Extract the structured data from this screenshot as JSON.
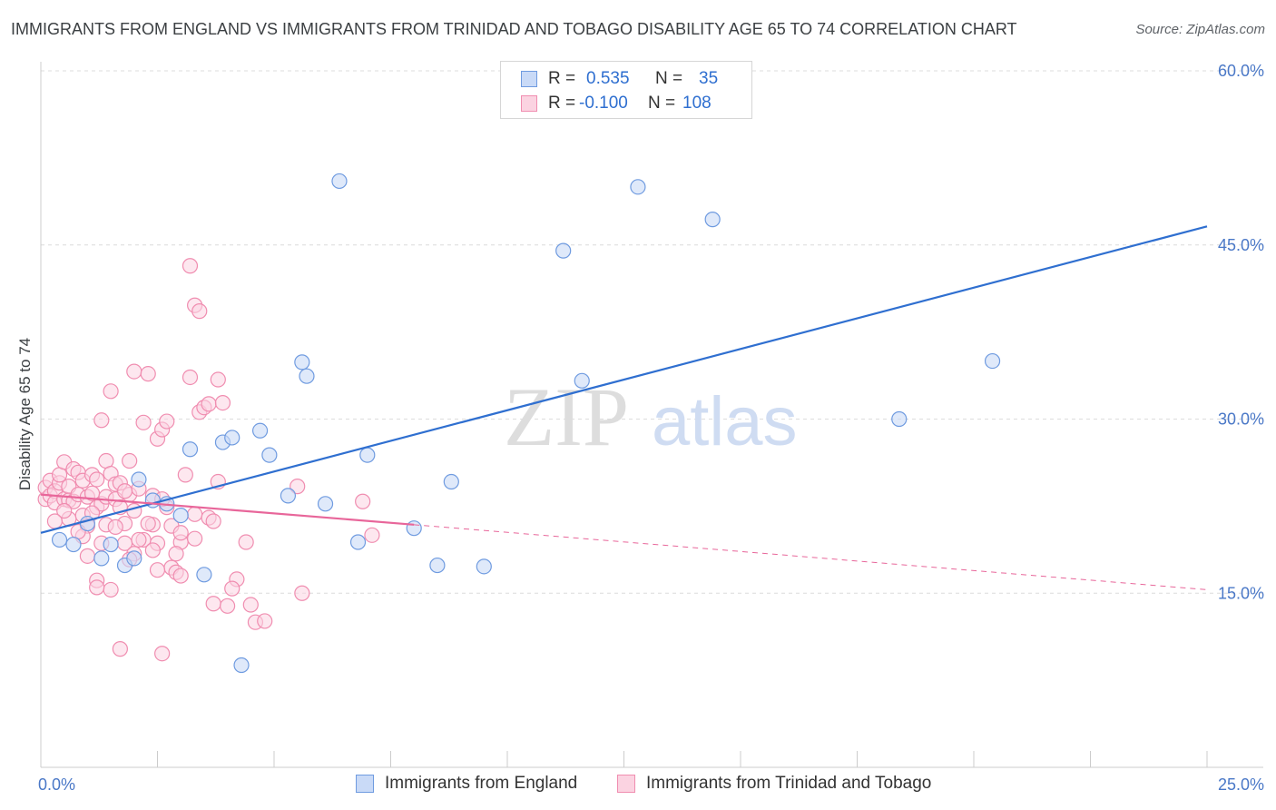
{
  "header": {
    "title": "IMMIGRANTS FROM ENGLAND VS IMMIGRANTS FROM TRINIDAD AND TOBAGO DISABILITY AGE 65 TO 74 CORRELATION CHART",
    "source": "Source: ZipAtlas.com"
  },
  "watermark": {
    "zip": "ZIP",
    "atlas": "atlas"
  },
  "legend": {
    "rows": [
      {
        "r_label": "R =",
        "r_value": "0.535",
        "n_label": "N =",
        "n_value": "35",
        "color": "#6f9be0",
        "fill": "#c9daf7"
      },
      {
        "r_label": "R =",
        "r_value": "-0.100",
        "n_label": "N =",
        "n_value": "108",
        "color": "#f08db0",
        "fill": "#fbd3e1"
      }
    ]
  },
  "bottom_legend": {
    "england": "Immigrants from England",
    "trinidad": "Immigrants from Trinidad and Tobago"
  },
  "chart_data": {
    "type": "scatter",
    "ylabel": "Disability Age 65 to 74",
    "xlim": [
      0,
      25
    ],
    "ylim": [
      0,
      60
    ],
    "x_tick_labels": [
      "0.0%",
      "25.0%"
    ],
    "y_tick_labels": [
      "15.0%",
      "30.0%",
      "45.0%",
      "60.0%"
    ],
    "y_ticks": [
      15,
      30,
      45,
      60
    ],
    "grid": true,
    "colors": {
      "england": "#2f6fd0",
      "trinidad": "#e8669a",
      "england_fill": "#c9daf7",
      "trinidad_fill": "#fbd3e1"
    },
    "series": [
      {
        "name": "Immigrants from England",
        "points": [
          [
            0.4,
            19.6
          ],
          [
            0.7,
            19.2
          ],
          [
            1.0,
            21.0
          ],
          [
            1.3,
            18.0
          ],
          [
            1.5,
            19.2
          ],
          [
            1.8,
            17.4
          ],
          [
            2.1,
            24.8
          ],
          [
            2.4,
            23.0
          ],
          [
            2.7,
            22.7
          ],
          [
            3.0,
            21.7
          ],
          [
            3.2,
            27.4
          ],
          [
            3.5,
            16.6
          ],
          [
            3.9,
            28.0
          ],
          [
            4.1,
            28.4
          ],
          [
            4.3,
            8.8
          ],
          [
            4.7,
            29.0
          ],
          [
            4.9,
            26.9
          ],
          [
            5.3,
            23.4
          ],
          [
            5.6,
            34.9
          ],
          [
            5.7,
            33.7
          ],
          [
            6.1,
            22.7
          ],
          [
            6.4,
            50.5
          ],
          [
            6.8,
            19.4
          ],
          [
            7.0,
            26.9
          ],
          [
            8.0,
            20.6
          ],
          [
            8.5,
            17.4
          ],
          [
            8.8,
            24.6
          ],
          [
            9.5,
            17.3
          ],
          [
            11.2,
            44.5
          ],
          [
            11.6,
            33.3
          ],
          [
            12.8,
            50.0
          ],
          [
            14.4,
            47.2
          ],
          [
            18.4,
            30.0
          ],
          [
            20.4,
            35.0
          ],
          [
            2.0,
            18.0
          ]
        ],
        "trend": {
          "x": [
            0,
            25
          ],
          "y": [
            20.2,
            46.6
          ]
        }
      },
      {
        "name": "Immigrants from Trinidad and Tobago",
        "points": [
          [
            0.1,
            23.1
          ],
          [
            0.1,
            24.1
          ],
          [
            0.2,
            24.7
          ],
          [
            0.2,
            23.4
          ],
          [
            0.3,
            23.8
          ],
          [
            0.3,
            22.8
          ],
          [
            0.4,
            24.5
          ],
          [
            0.4,
            25.2
          ],
          [
            0.5,
            23.1
          ],
          [
            0.5,
            26.3
          ],
          [
            0.6,
            24.2
          ],
          [
            0.6,
            23.0
          ],
          [
            0.7,
            25.7
          ],
          [
            0.7,
            22.9
          ],
          [
            0.8,
            23.5
          ],
          [
            0.8,
            25.4
          ],
          [
            0.9,
            21.7
          ],
          [
            0.9,
            24.7
          ],
          [
            1.0,
            23.3
          ],
          [
            1.0,
            20.8
          ],
          [
            1.1,
            23.6
          ],
          [
            1.1,
            25.2
          ],
          [
            1.2,
            22.4
          ],
          [
            1.2,
            24.8
          ],
          [
            1.3,
            29.9
          ],
          [
            1.3,
            22.7
          ],
          [
            1.4,
            26.4
          ],
          [
            1.4,
            23.3
          ],
          [
            1.5,
            32.4
          ],
          [
            1.5,
            25.3
          ],
          [
            1.6,
            24.4
          ],
          [
            1.6,
            23.1
          ],
          [
            1.7,
            22.4
          ],
          [
            1.7,
            24.5
          ],
          [
            1.8,
            19.3
          ],
          [
            1.8,
            21.0
          ],
          [
            1.9,
            26.4
          ],
          [
            1.9,
            23.5
          ],
          [
            2.0,
            34.1
          ],
          [
            2.0,
            18.4
          ],
          [
            2.1,
            24.0
          ],
          [
            2.2,
            19.6
          ],
          [
            2.2,
            29.7
          ],
          [
            2.3,
            33.9
          ],
          [
            2.4,
            20.9
          ],
          [
            2.4,
            23.4
          ],
          [
            2.5,
            28.3
          ],
          [
            2.5,
            19.3
          ],
          [
            2.6,
            29.1
          ],
          [
            2.7,
            29.8
          ],
          [
            2.7,
            22.4
          ],
          [
            2.8,
            17.2
          ],
          [
            2.8,
            20.8
          ],
          [
            2.9,
            16.8
          ],
          [
            3.0,
            19.4
          ],
          [
            3.1,
            25.2
          ],
          [
            3.2,
            33.6
          ],
          [
            3.2,
            43.2
          ],
          [
            3.3,
            39.8
          ],
          [
            3.3,
            19.7
          ],
          [
            3.4,
            39.3
          ],
          [
            3.4,
            30.6
          ],
          [
            3.5,
            31.0
          ],
          [
            3.6,
            31.3
          ],
          [
            3.6,
            21.5
          ],
          [
            3.7,
            14.1
          ],
          [
            3.8,
            33.4
          ],
          [
            3.8,
            24.6
          ],
          [
            3.9,
            31.4
          ],
          [
            4.0,
            13.9
          ],
          [
            4.2,
            16.2
          ],
          [
            4.4,
            19.4
          ],
          [
            4.5,
            14.0
          ],
          [
            4.6,
            12.5
          ],
          [
            4.8,
            12.6
          ],
          [
            5.5,
            24.2
          ],
          [
            5.6,
            15.0
          ],
          [
            6.9,
            22.9
          ],
          [
            7.1,
            20.0
          ],
          [
            1.2,
            16.1
          ],
          [
            1.5,
            15.3
          ],
          [
            1.7,
            10.2
          ],
          [
            2.6,
            9.8
          ],
          [
            3.0,
            16.5
          ],
          [
            2.1,
            19.6
          ],
          [
            2.6,
            23.1
          ],
          [
            3.3,
            21.8
          ],
          [
            1.0,
            18.2
          ],
          [
            0.6,
            21.4
          ],
          [
            1.4,
            20.9
          ],
          [
            2.3,
            21.0
          ],
          [
            1.9,
            17.9
          ],
          [
            0.9,
            19.9
          ],
          [
            2.9,
            18.4
          ],
          [
            1.6,
            20.7
          ],
          [
            3.7,
            21.2
          ],
          [
            2.0,
            22.1
          ],
          [
            1.1,
            21.9
          ],
          [
            0.5,
            22.1
          ],
          [
            0.3,
            21.2
          ],
          [
            1.3,
            19.3
          ],
          [
            2.4,
            18.7
          ],
          [
            0.8,
            20.3
          ],
          [
            1.8,
            23.8
          ],
          [
            3.0,
            20.2
          ],
          [
            4.1,
            15.4
          ],
          [
            2.5,
            17.0
          ],
          [
            1.2,
            15.5
          ]
        ],
        "trend": {
          "x": [
            0,
            8
          ],
          "y": [
            23.5,
            20.9
          ]
        },
        "trend_ext": {
          "x": [
            8,
            25
          ],
          "y": [
            20.9,
            15.3
          ]
        }
      }
    ]
  }
}
